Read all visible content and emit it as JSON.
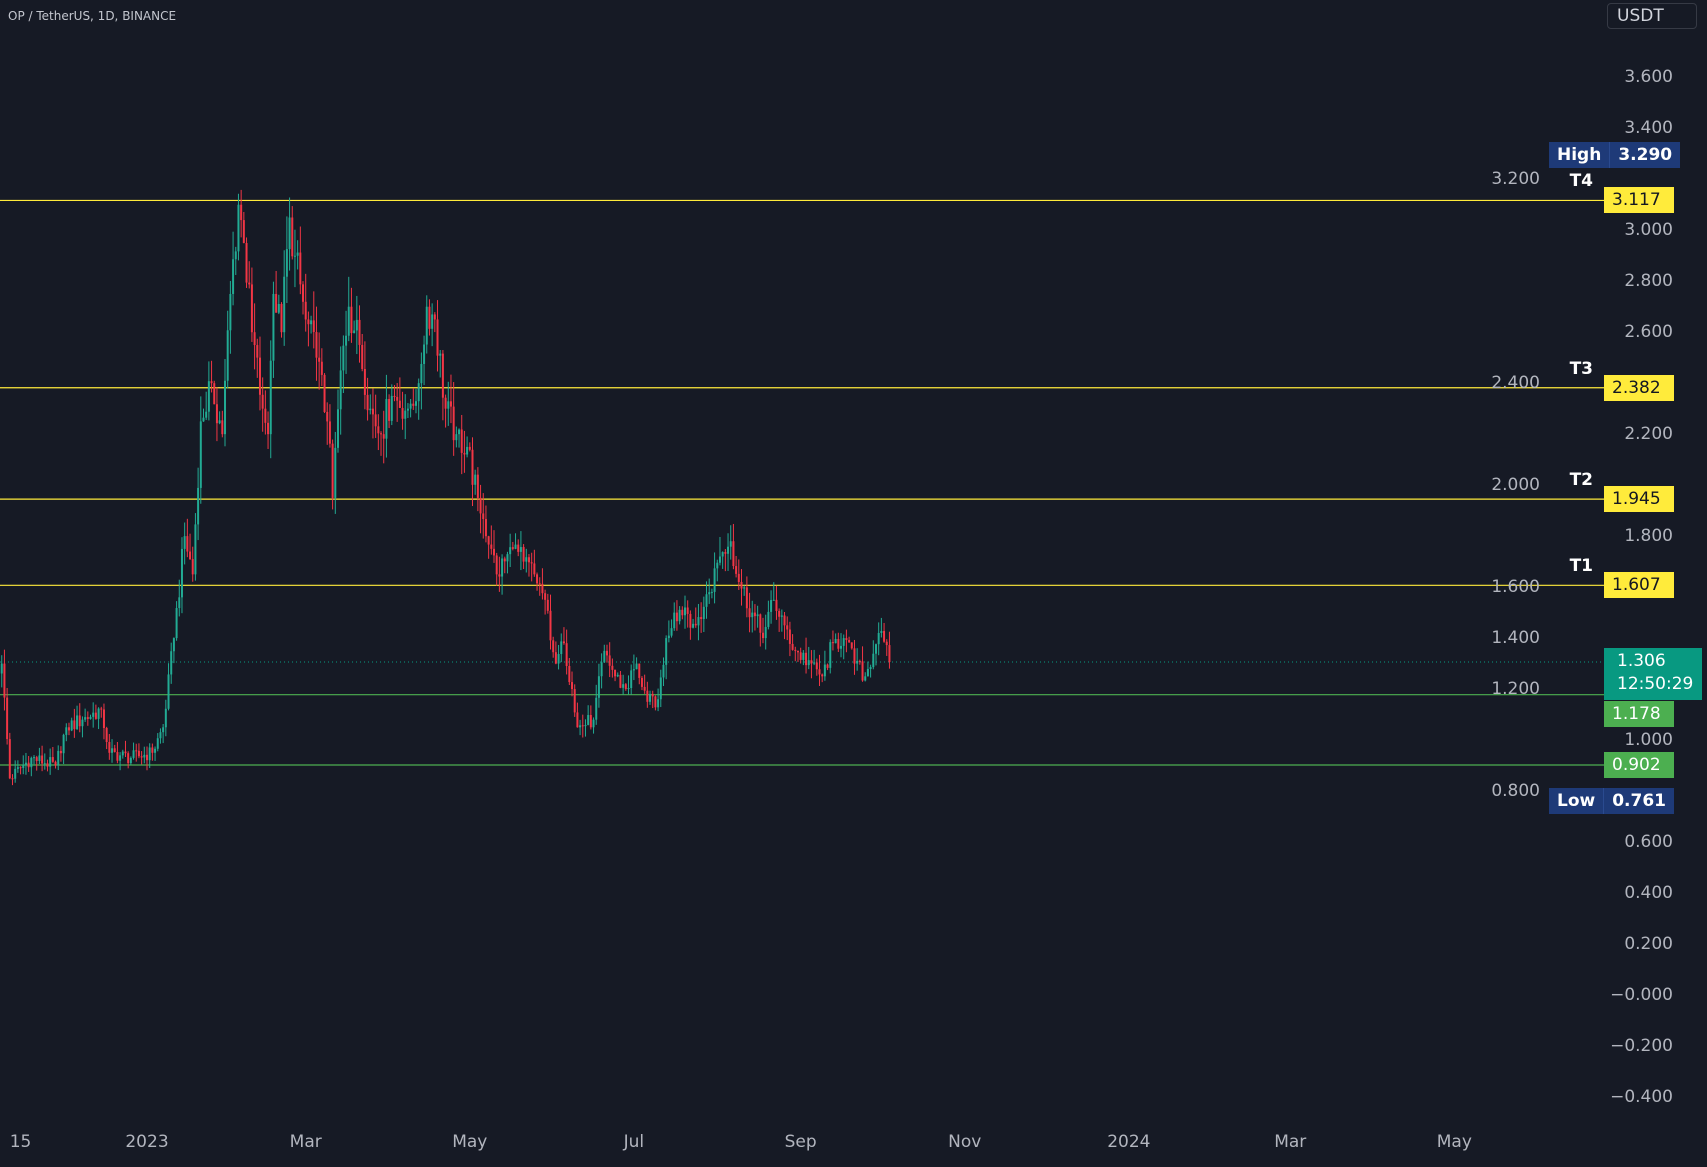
{
  "header": {
    "symbol_title": "OP / TetherUS, 1D, BINANCE",
    "currency": "USDT"
  },
  "chart_data": {
    "type": "candlestick",
    "symbol": "OP / TetherUS",
    "interval": "1D",
    "exchange": "BINANCE",
    "colors": {
      "background": "#161a25",
      "up": "#22ab94",
      "down": "#f23645",
      "target_line": "#ffeb3b",
      "support_line": "#4caf50",
      "last_price": "#089981",
      "high_low": "#1e3a78"
    },
    "ylim": [
      -0.4,
      3.7
    ],
    "y_ticks": [
      "3.600",
      "3.400",
      "3.200",
      "3.000",
      "2.800",
      "2.600",
      "2.400",
      "2.200",
      "2.000",
      "1.800",
      "1.600",
      "1.400",
      "1.200",
      "1.000",
      "0.800",
      "0.600",
      "0.400",
      "0.200",
      "−0.000",
      "−0.200",
      "−0.400"
    ],
    "x_ticks": [
      {
        "label": "15",
        "date": "2022-11-15"
      },
      {
        "label": "2023",
        "date": "2023-01-01"
      },
      {
        "label": "Mar",
        "date": "2023-03-01"
      },
      {
        "label": "May",
        "date": "2023-05-01"
      },
      {
        "label": "Jul",
        "date": "2023-07-01"
      },
      {
        "label": "Sep",
        "date": "2023-09-01"
      },
      {
        "label": "Nov",
        "date": "2023-11-01"
      },
      {
        "label": "2024",
        "date": "2024-01-01"
      },
      {
        "label": "Mar",
        "date": "2024-03-01"
      },
      {
        "label": "May",
        "date": "2024-05-01"
      }
    ],
    "close_path": [
      [
        "2022-11-08",
        1.3
      ],
      [
        "2022-11-11",
        0.85
      ],
      [
        "2022-11-19",
        0.93
      ],
      [
        "2022-11-28",
        0.9
      ],
      [
        "2022-12-02",
        1.05
      ],
      [
        "2022-12-08",
        1.08
      ],
      [
        "2022-12-15",
        1.12
      ],
      [
        "2022-12-18",
        0.95
      ],
      [
        "2022-12-26",
        0.93
      ],
      [
        "2023-01-03",
        0.95
      ],
      [
        "2023-01-07",
        1.05
      ],
      [
        "2023-01-11",
        1.4
      ],
      [
        "2023-01-15",
        1.8
      ],
      [
        "2023-01-18",
        1.65
      ],
      [
        "2023-01-21",
        2.25
      ],
      [
        "2023-01-25",
        2.4
      ],
      [
        "2023-01-29",
        2.2
      ],
      [
        "2023-02-01",
        2.75
      ],
      [
        "2023-02-04",
        3.1
      ],
      [
        "2023-02-06",
        2.95
      ],
      [
        "2023-02-09",
        2.6
      ],
      [
        "2023-02-13",
        2.3
      ],
      [
        "2023-02-15",
        2.2
      ],
      [
        "2023-02-17",
        2.75
      ],
      [
        "2023-02-20",
        2.6
      ],
      [
        "2023-02-23",
        3.05
      ],
      [
        "2023-02-25",
        2.9
      ],
      [
        "2023-03-01",
        2.65
      ],
      [
        "2023-03-05",
        2.5
      ],
      [
        "2023-03-09",
        2.25
      ],
      [
        "2023-03-11",
        1.95
      ],
      [
        "2023-03-14",
        2.45
      ],
      [
        "2023-03-17",
        2.7
      ],
      [
        "2023-03-21",
        2.55
      ],
      [
        "2023-03-25",
        2.3
      ],
      [
        "2023-03-29",
        2.2
      ],
      [
        "2023-04-02",
        2.35
      ],
      [
        "2023-04-08",
        2.3
      ],
      [
        "2023-04-12",
        2.4
      ],
      [
        "2023-04-15",
        2.7
      ],
      [
        "2023-04-18",
        2.65
      ],
      [
        "2023-04-22",
        2.3
      ],
      [
        "2023-04-26",
        2.2
      ],
      [
        "2023-04-30",
        2.15
      ],
      [
        "2023-05-04",
        1.95
      ],
      [
        "2023-05-09",
        1.75
      ],
      [
        "2023-05-11",
        1.65
      ],
      [
        "2023-05-17",
        1.75
      ],
      [
        "2023-05-21",
        1.7
      ],
      [
        "2023-05-25",
        1.65
      ],
      [
        "2023-05-29",
        1.55
      ],
      [
        "2023-06-02",
        1.3
      ],
      [
        "2023-06-05",
        1.38
      ],
      [
        "2023-06-08",
        1.2
      ],
      [
        "2023-06-10",
        1.05
      ],
      [
        "2023-06-16",
        1.08
      ],
      [
        "2023-06-20",
        1.35
      ],
      [
        "2023-06-24",
        1.25
      ],
      [
        "2023-06-28",
        1.2
      ],
      [
        "2023-07-02",
        1.3
      ],
      [
        "2023-07-06",
        1.15
      ],
      [
        "2023-07-10",
        1.16
      ],
      [
        "2023-07-13",
        1.4
      ],
      [
        "2023-07-16",
        1.5
      ],
      [
        "2023-07-20",
        1.52
      ],
      [
        "2023-07-24",
        1.45
      ],
      [
        "2023-07-29",
        1.58
      ],
      [
        "2023-08-02",
        1.72
      ],
      [
        "2023-08-06",
        1.78
      ],
      [
        "2023-08-09",
        1.62
      ],
      [
        "2023-08-14",
        1.5
      ],
      [
        "2023-08-18",
        1.4
      ],
      [
        "2023-08-22",
        1.55
      ],
      [
        "2023-08-26",
        1.45
      ],
      [
        "2023-08-30",
        1.35
      ],
      [
        "2023-09-05",
        1.3
      ],
      [
        "2023-09-09",
        1.25
      ],
      [
        "2023-09-13",
        1.38
      ],
      [
        "2023-09-17",
        1.4
      ],
      [
        "2023-09-21",
        1.3
      ],
      [
        "2023-09-25",
        1.25
      ],
      [
        "2023-09-30",
        1.42
      ],
      [
        "2023-10-04",
        1.306
      ]
    ],
    "levels": [
      {
        "name": "T4",
        "value": "3.117",
        "kind": "target"
      },
      {
        "name": "T3",
        "value": "2.382",
        "kind": "target"
      },
      {
        "name": "T2",
        "value": "1.945",
        "kind": "target"
      },
      {
        "name": "T1",
        "value": "1.607",
        "kind": "target"
      },
      {
        "name": "",
        "value": "1.178",
        "kind": "support"
      },
      {
        "name": "",
        "value": "0.902",
        "kind": "support"
      }
    ],
    "high": {
      "label": "High",
      "value": "3.290"
    },
    "low": {
      "label": "Low",
      "value": "0.761"
    },
    "last_price": {
      "value": "1.306",
      "countdown": "12:50:29"
    }
  }
}
